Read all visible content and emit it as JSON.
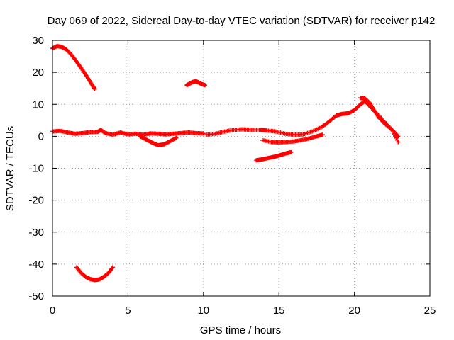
{
  "chart_data": {
    "type": "scatter",
    "title": "Day 069 of 2022, Sidereal Day-to-day VTEC variation (SDTVAR) for receiver p142",
    "xlabel": "GPS time / hours",
    "ylabel": "SDTVAR / TECUs",
    "xlim": [
      0,
      25
    ],
    "ylim": [
      -50,
      30
    ],
    "xticks": [
      0,
      5,
      10,
      15,
      20,
      25
    ],
    "yticks": [
      -50,
      -40,
      -30,
      -20,
      -10,
      0,
      10,
      20,
      30
    ],
    "grid": true,
    "marker": "+",
    "color": "#ff0000",
    "series": [
      {
        "name": "arc-high-start",
        "points": [
          [
            0.0,
            27.5
          ],
          [
            0.3,
            28.2
          ],
          [
            0.6,
            28.0
          ],
          [
            0.9,
            27.2
          ],
          [
            1.2,
            25.8
          ],
          [
            1.5,
            24.0
          ],
          [
            1.8,
            22.0
          ],
          [
            2.1,
            20.0
          ],
          [
            2.4,
            17.8
          ],
          [
            2.7,
            15.5
          ],
          [
            2.8,
            14.8
          ]
        ]
      },
      {
        "name": "arc-low",
        "points": [
          [
            1.6,
            -41.0
          ],
          [
            1.9,
            -42.8
          ],
          [
            2.2,
            -44.0
          ],
          [
            2.5,
            -44.7
          ],
          [
            2.8,
            -45.0
          ],
          [
            3.1,
            -44.8
          ],
          [
            3.4,
            -44.0
          ],
          [
            3.7,
            -42.8
          ],
          [
            4.0,
            -41.0
          ]
        ]
      },
      {
        "name": "arc-near-zero-a",
        "points": [
          [
            0.0,
            1.5
          ],
          [
            0.5,
            1.7
          ],
          [
            1.0,
            1.2
          ],
          [
            1.5,
            0.8
          ],
          [
            2.0,
            1.0
          ],
          [
            2.5,
            1.3
          ],
          [
            3.0,
            1.4
          ],
          [
            3.2,
            2.0
          ],
          [
            3.5,
            1.0
          ],
          [
            4.0,
            0.5
          ],
          [
            4.5,
            1.2
          ],
          [
            5.0,
            0.6
          ],
          [
            5.5,
            0.8
          ],
          [
            6.0,
            0.5
          ],
          [
            6.5,
            0.9
          ],
          [
            7.0,
            0.8
          ],
          [
            7.5,
            0.6
          ],
          [
            8.0,
            0.8
          ],
          [
            8.5,
            1.0
          ],
          [
            9.0,
            1.2
          ],
          [
            9.5,
            1.0
          ],
          [
            10.0,
            0.9
          ]
        ]
      },
      {
        "name": "arc-dip-six-eight",
        "points": [
          [
            5.8,
            0.0
          ],
          [
            6.2,
            -1.0
          ],
          [
            6.6,
            -2.0
          ],
          [
            7.0,
            -2.8
          ],
          [
            7.4,
            -2.5
          ],
          [
            7.8,
            -1.5
          ],
          [
            8.2,
            -0.5
          ]
        ]
      },
      {
        "name": "arc-near-zero-b",
        "points": [
          [
            10.2,
            0.5
          ],
          [
            10.8,
            0.8
          ],
          [
            11.4,
            1.5
          ],
          [
            12.0,
            2.0
          ],
          [
            12.6,
            2.2
          ],
          [
            13.2,
            2.0
          ],
          [
            13.8,
            2.0
          ],
          [
            14.2,
            1.8
          ],
          [
            14.8,
            1.5
          ],
          [
            15.4,
            0.8
          ],
          [
            16.0,
            0.5
          ],
          [
            16.6,
            0.6
          ],
          [
            17.2,
            1.5
          ],
          [
            17.8,
            2.8
          ],
          [
            18.3,
            4.5
          ],
          [
            18.8,
            6.5
          ],
          [
            19.2,
            7.0
          ],
          [
            19.6,
            7.2
          ],
          [
            20.0,
            8.2
          ],
          [
            20.4,
            10.0
          ],
          [
            20.7,
            11.0
          ],
          [
            21.0,
            9.5
          ],
          [
            21.5,
            7.0
          ],
          [
            22.0,
            4.5
          ],
          [
            22.5,
            2.0
          ],
          [
            22.9,
            0.0
          ]
        ]
      },
      {
        "name": "arc-near-zero-c",
        "points": [
          [
            20.4,
            12.0
          ],
          [
            20.7,
            11.8
          ],
          [
            21.0,
            10.5
          ],
          [
            21.3,
            8.2
          ],
          [
            21.6,
            6.0
          ],
          [
            22.0,
            4.0
          ],
          [
            22.5,
            2.0
          ],
          [
            22.9,
            -1.8
          ]
        ]
      },
      {
        "name": "arc-mid-high",
        "points": [
          [
            8.9,
            16.0
          ],
          [
            9.1,
            16.5
          ],
          [
            9.3,
            17.0
          ],
          [
            9.5,
            17.2
          ],
          [
            9.7,
            16.8
          ],
          [
            9.9,
            16.3
          ],
          [
            10.1,
            16.0
          ]
        ]
      },
      {
        "name": "arc-negative-mid",
        "points": [
          [
            13.5,
            -7.5
          ],
          [
            13.9,
            -7.2
          ],
          [
            14.3,
            -6.8
          ],
          [
            14.7,
            -6.4
          ],
          [
            15.1,
            -5.9
          ],
          [
            15.5,
            -5.3
          ],
          [
            15.8,
            -5.0
          ]
        ]
      },
      {
        "name": "arc-slight-negative",
        "points": [
          [
            13.9,
            -1.2
          ],
          [
            14.5,
            -1.8
          ],
          [
            15.0,
            -1.9
          ],
          [
            15.5,
            -1.8
          ],
          [
            16.0,
            -1.6
          ],
          [
            16.5,
            -1.2
          ],
          [
            17.0,
            -0.7
          ],
          [
            17.5,
            0.0
          ],
          [
            17.9,
            0.5
          ]
        ]
      }
    ]
  }
}
